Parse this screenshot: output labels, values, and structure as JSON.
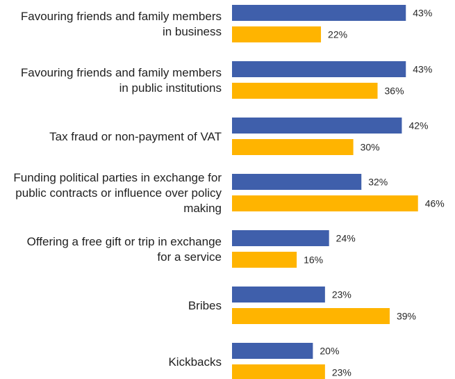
{
  "chart_data": {
    "type": "bar",
    "orientation": "horizontal",
    "categories": [
      [
        "Favouring friends and family members",
        "in business"
      ],
      [
        "Favouring friends and family members",
        "in public institutions"
      ],
      [
        "Tax fraud or non-payment of VAT"
      ],
      [
        "Funding political parties in exchange for",
        "public contracts or influence over policy",
        "making"
      ],
      [
        "Offering a free gift or trip in exchange",
        "for a service"
      ],
      [
        "Bribes"
      ],
      [
        "Kickbacks"
      ]
    ],
    "series": [
      {
        "color": "#3f5fab",
        "values": [
          43,
          43,
          42,
          32,
          24,
          23,
          20
        ],
        "labels": [
          "43%",
          "43%",
          "42%",
          "32%",
          "24%",
          "23%",
          "20%"
        ]
      },
      {
        "color": "#ffb400",
        "values": [
          22,
          36,
          30,
          46,
          16,
          39,
          23
        ],
        "labels": [
          "22%",
          "36%",
          "30%",
          "46%",
          "16%",
          "39%",
          "23%"
        ]
      }
    ],
    "xlim": [
      0,
      50
    ],
    "grid": false,
    "legend": "none",
    "title": "",
    "xlabel": "",
    "ylabel": ""
  }
}
